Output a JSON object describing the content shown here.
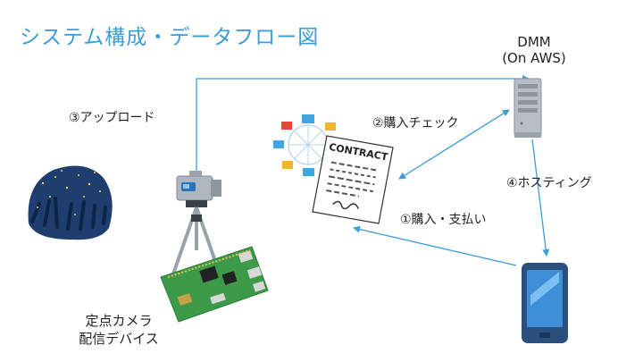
{
  "title": "システム構成・データフロー図",
  "nodes": {
    "server": {
      "name": "DMM",
      "sub": "(On AWS)"
    },
    "camera": {
      "line1": "定点カメラ",
      "line2": "配信デバイス"
    },
    "contract": {
      "text": "CONTRACT"
    }
  },
  "flows": {
    "purchase": "①購入・支払い",
    "check": "②購入チェック",
    "upload": "③アップロード",
    "hosting": "④ホスティング"
  },
  "colors": {
    "accent": "#3d9dd6",
    "arrow": "#3d9dd6"
  }
}
